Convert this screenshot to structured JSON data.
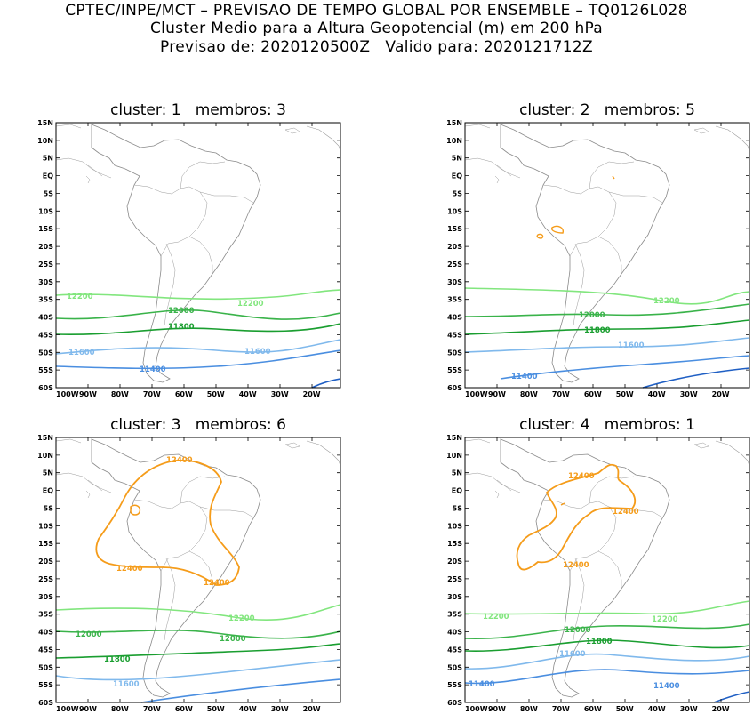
{
  "header": {
    "line1": "CPTEC/INPE/MCT – PREVISAO DE TEMPO GLOBAL POR ENSEMBLE – TQ0126L028",
    "line2": "Cluster Medio para a Altura Geopotencial (m) em 200 hPa",
    "line3": "Previsao de: 2020120500Z   Valido para: 2020121712Z"
  },
  "axes": {
    "lat_labels": [
      "15N",
      "10N",
      "5N",
      "EQ",
      "5S",
      "10S",
      "15S",
      "20S",
      "25S",
      "30S",
      "35S",
      "40S",
      "45S",
      "50S",
      "55S",
      "60S"
    ],
    "lon_labels": [
      "100W",
      "90W",
      "80W",
      "70W",
      "60W",
      "50W",
      "40W",
      "30W",
      "20W"
    ]
  },
  "colors": {
    "c11400": "#4a8ee0",
    "c11600": "#80b9ec",
    "c11800": "#1a9e30",
    "c12000": "#3ab34a",
    "c12200": "#82e67e",
    "c12400": "#f59c1a",
    "deep": "#1f5fc4",
    "coast": "#8a8a8a"
  },
  "panels": [
    {
      "title": "cluster: 1   membros: 3",
      "labels": {
        "l12200a": "12200",
        "l12200b": "12200",
        "l12000": "12000",
        "l11800": "11800",
        "l11600a": "11600",
        "l11600b": "11600",
        "l11400": "11400"
      }
    },
    {
      "title": "cluster: 2   membros: 5",
      "labels": {
        "l12200": "12200",
        "l12000": "12000",
        "l11800": "11800",
        "l11600": "11600",
        "l11400": "11400"
      }
    },
    {
      "title": "cluster: 3   membros: 6",
      "labels": {
        "l12400a": "12400",
        "l12400b": "12400",
        "l12400c": "12400",
        "l12200": "12200",
        "l12000a": "12000",
        "l12000b": "12000",
        "l11800": "11800",
        "l11600": "11600"
      }
    },
    {
      "title": "cluster: 4   membros: 1",
      "labels": {
        "l12400a": "12400",
        "l12400b": "12400",
        "l12400c": "12400",
        "l12200a": "12200",
        "l12200b": "12200",
        "l12000": "12000",
        "l11800": "11800",
        "l11600": "11600",
        "l11400a": "11400",
        "l11400b": "11400"
      }
    }
  ]
}
